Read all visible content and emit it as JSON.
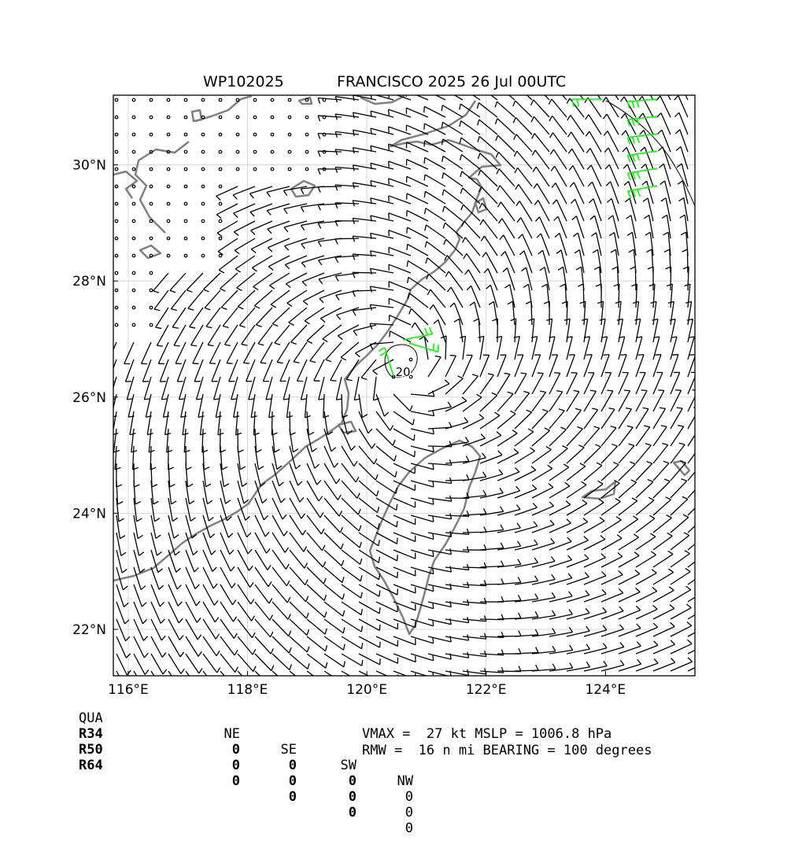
{
  "title": {
    "storm_id": "WP102025",
    "storm_info": "FRANCISCO 2025 26 Jul 00UTC"
  },
  "map": {
    "lon_range": [
      115.75,
      125.5
    ],
    "lat_range": [
      21.2,
      31.2
    ],
    "lon_ticks": [
      "116°E",
      "118°E",
      "120°E",
      "122°E",
      "124°E"
    ],
    "lat_ticks": [
      "22°N",
      "24°N",
      "26°N",
      "28°N",
      "30°N"
    ],
    "center_label": "20",
    "storm_center": {
      "lon": 120.65,
      "lat": 26.45
    },
    "colors": {
      "barb": "#000000",
      "r34_barb": "#00ff00",
      "coast": "#808080",
      "grid": "#d8d8d8"
    }
  },
  "quadrants": {
    "header": [
      "QUA",
      "NE",
      "SE",
      "SW",
      "NW"
    ],
    "rows": [
      {
        "label": "R34",
        "values": [
          "0",
          "0",
          "0",
          "0"
        ]
      },
      {
        "label": "R50",
        "values": [
          "0",
          "0",
          "0",
          "0"
        ]
      },
      {
        "label": "R64",
        "values": [
          "0",
          "0",
          "0",
          "0"
        ]
      }
    ]
  },
  "summary": {
    "line1": "VMAX =  27 kt MSLP = 1006.8 hPa",
    "line2": "RMW =  16 n mi BEARING = 100 degrees"
  }
}
